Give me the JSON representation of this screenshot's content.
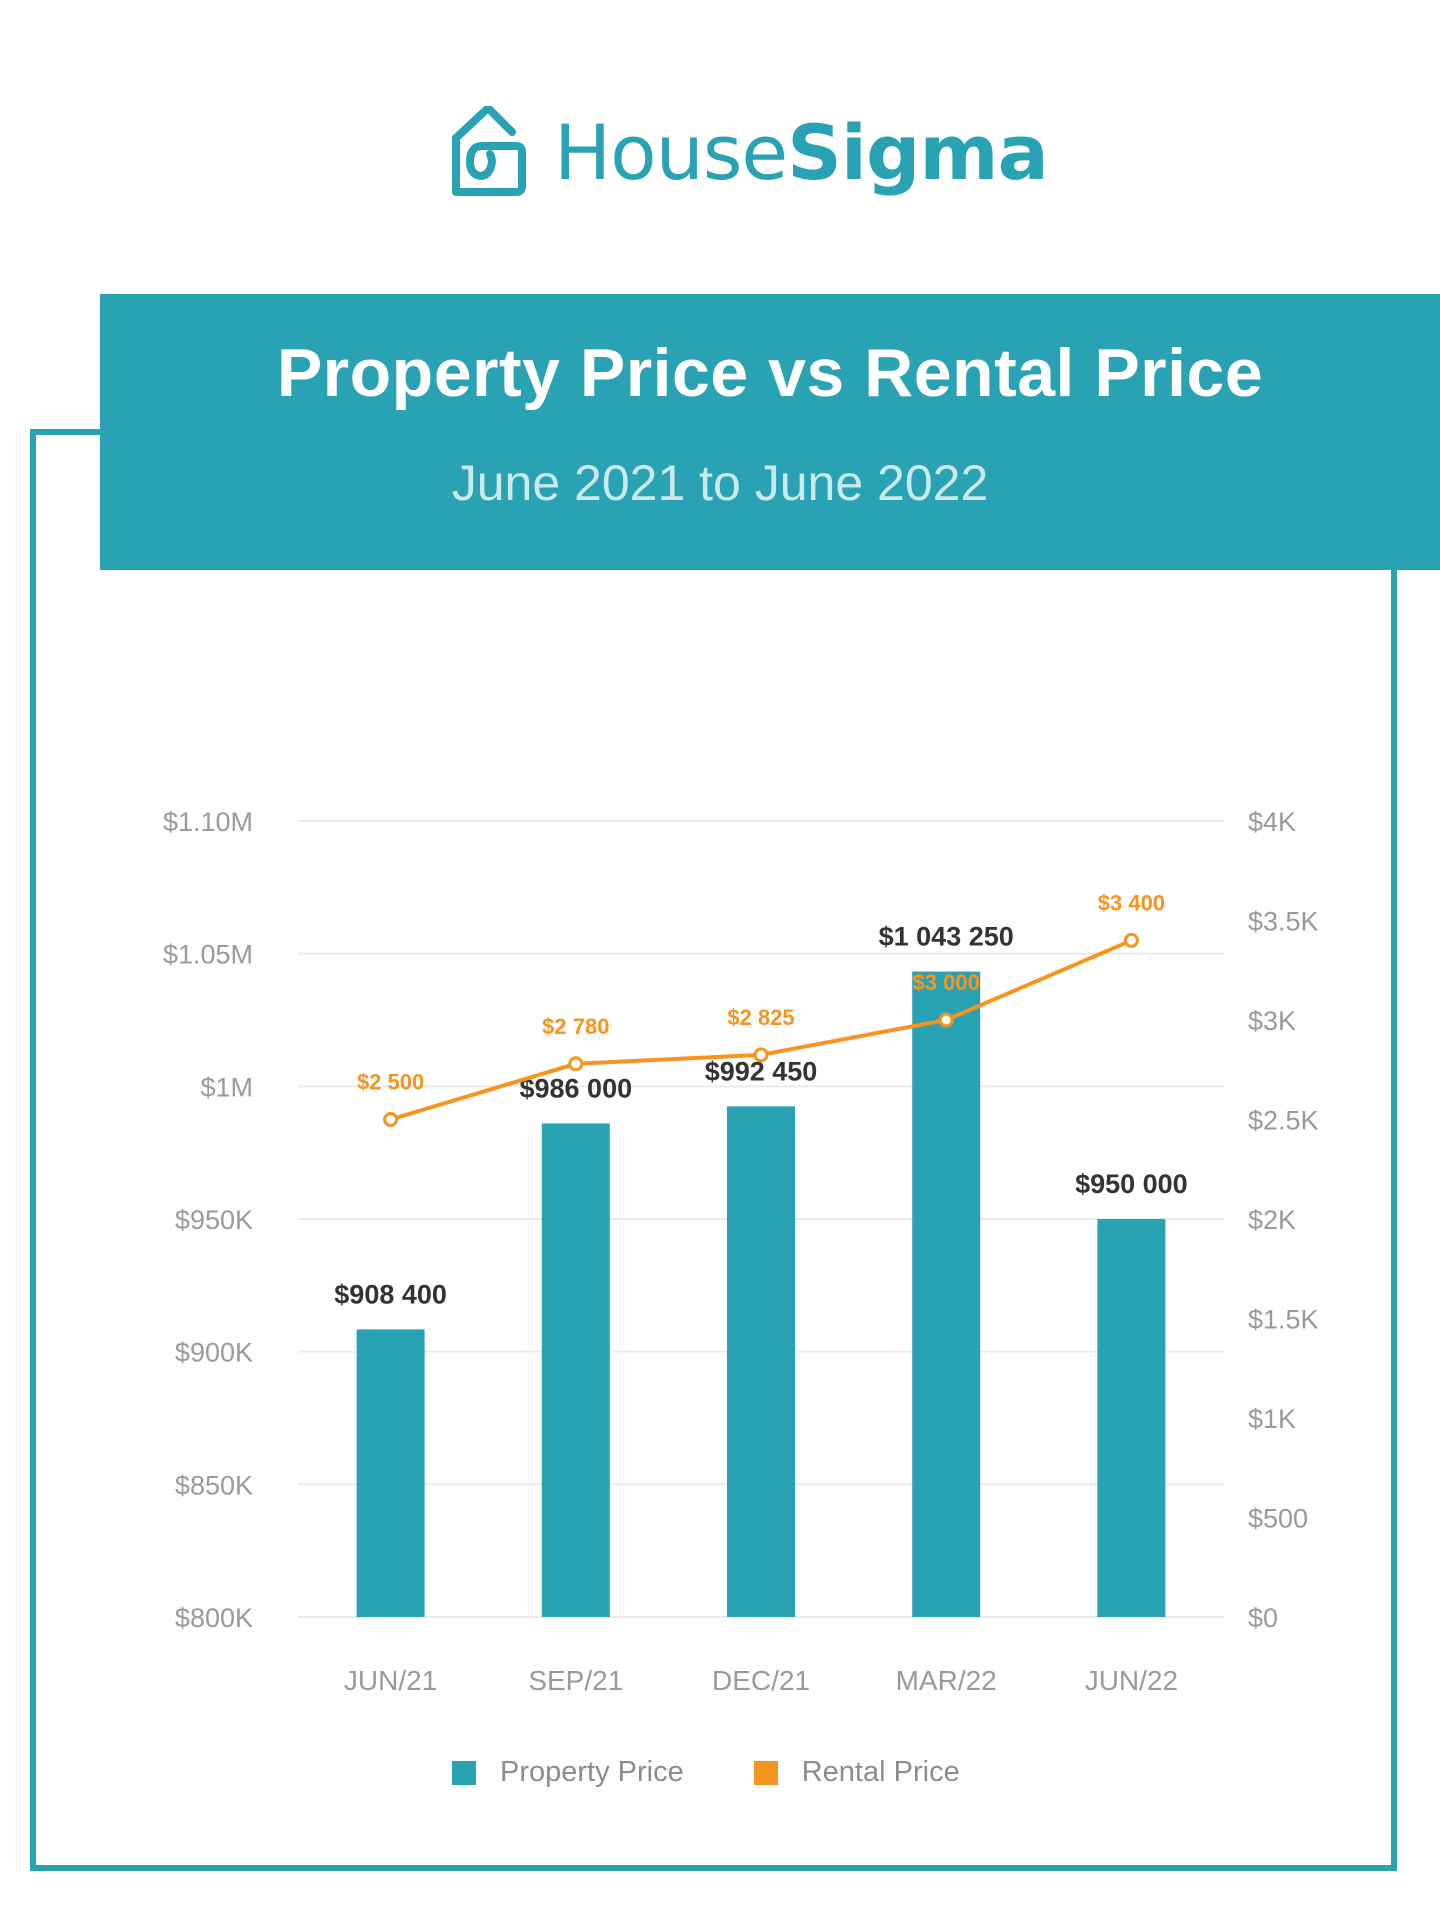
{
  "logo": {
    "text_regular": "House",
    "text_bold": "Sigma"
  },
  "header": {
    "title": "Property Price vs Rental Price",
    "subtitle": "June 2021 to June 2022"
  },
  "colors": {
    "brand": "#29a3b3",
    "rental": "#f7941d",
    "grid": "#ebebeb",
    "axis_text": "#9a9a9a",
    "label_text": "#333333"
  },
  "chart_data": {
    "type": "bar+line",
    "title": "Property Price vs Rental Price",
    "subtitle": "June 2021 to June 2022",
    "categories": [
      "JUN/21",
      "SEP/21",
      "DEC/21",
      "MAR/22",
      "JUN/22"
    ],
    "series": [
      {
        "name": "Property Price",
        "type": "bar",
        "axis": "left",
        "values": [
          908400,
          986000,
          992450,
          1043250,
          950000
        ],
        "labels": [
          "$908 400",
          "$986 000",
          "$992 450",
          "$1 043 250",
          "$950 000"
        ]
      },
      {
        "name": "Rental Price",
        "type": "line",
        "axis": "right",
        "values": [
          2500,
          2780,
          2825,
          3000,
          3400
        ],
        "labels": [
          "$2 500",
          "$2 780",
          "$2 825",
          "$3 000",
          "$3 400"
        ]
      }
    ],
    "y_left": {
      "range": [
        800000,
        1100000
      ],
      "ticks": [
        800000,
        850000,
        900000,
        950000,
        1000000,
        1050000,
        1100000
      ],
      "tick_labels": [
        "$800K",
        "$850K",
        "$900K",
        "$950K",
        "$1M",
        "$1.05M",
        "$1.10M"
      ]
    },
    "y_right": {
      "range": [
        0,
        4000
      ],
      "ticks": [
        0,
        500,
        1000,
        1500,
        2000,
        2500,
        3000,
        3500,
        4000
      ],
      "tick_labels": [
        "$0",
        "$500",
        "$1K",
        "$1.5K",
        "$2K",
        "$2.5K",
        "$3K",
        "$3.5K",
        "$4K"
      ]
    },
    "grid": true,
    "legend": {
      "placement": "bottom",
      "entries": [
        "Property Price",
        "Rental Price"
      ]
    }
  }
}
